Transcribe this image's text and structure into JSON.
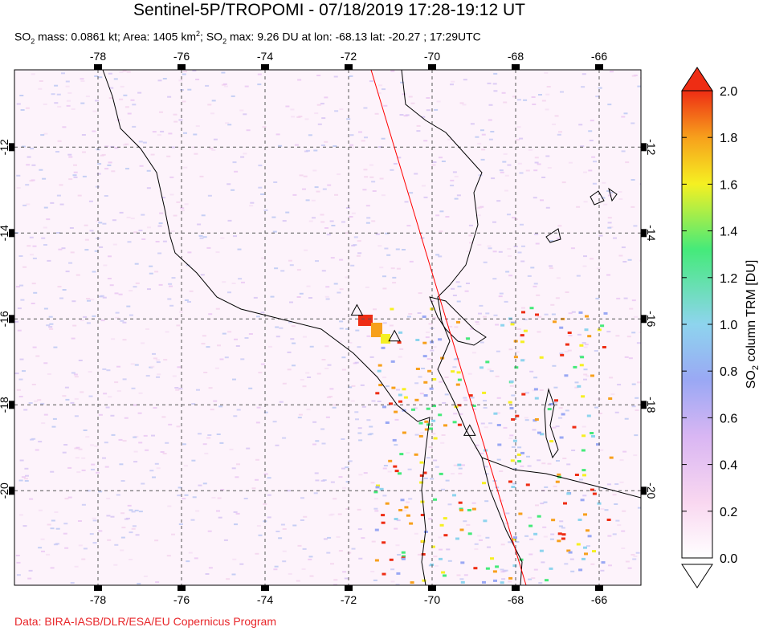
{
  "header": {
    "title": "Sentinel-5P/TROPOMI - 07/18/2019 17:28-19:12 UT",
    "subtitle_prefix": "SO",
    "subtitle_sub": "2",
    "subtitle_mass": " mass: 0.0861 kt; Area: 1405 km",
    "subtitle_sup": "2",
    "subtitle_max_prefix": "; SO",
    "subtitle_max_sub": "2",
    "subtitle_rest": " max: 9.26 DU at lon: -68.13 lat: -20.27 ; 17:29UTC"
  },
  "map": {
    "lon_ticks": [
      "-78",
      "-76",
      "-74",
      "-72",
      "-70",
      "-68",
      "-66"
    ],
    "lat_ticks": [
      "-12",
      "-14",
      "-16",
      "-18",
      "-20"
    ],
    "lon_range": [
      -80,
      -65
    ],
    "lat_range": [
      -22.2,
      -10.2
    ],
    "volcano_markers": [
      {
        "lon": -71.8,
        "lat": -15.8
      },
      {
        "lon": -70.9,
        "lat": -16.4
      },
      {
        "lon": -69.1,
        "lat": -18.6
      }
    ],
    "colors": {
      "coast": "#000000",
      "grid": "#555555",
      "track": "#ff0000"
    }
  },
  "colorbar": {
    "label_main": "SO",
    "label_sub": "2",
    "label_rest": " column TRM [DU]",
    "ticks": [
      "2.0",
      "1.8",
      "1.6",
      "1.4",
      "1.2",
      "1.0",
      "0.8",
      "0.6",
      "0.4",
      "0.2",
      "0.0"
    ],
    "range": [
      0.0,
      2.0
    ],
    "stops": [
      "#ffffff",
      "#f9d7f0",
      "#d9b6f3",
      "#9aa8f4",
      "#8ed4ee",
      "#45ea7a",
      "#f5f022",
      "#f7a01c",
      "#ee2d14"
    ]
  },
  "footer": {
    "credit": "Data: BIRA-IASB/DLR/ESA/EU Copernicus Program"
  }
}
